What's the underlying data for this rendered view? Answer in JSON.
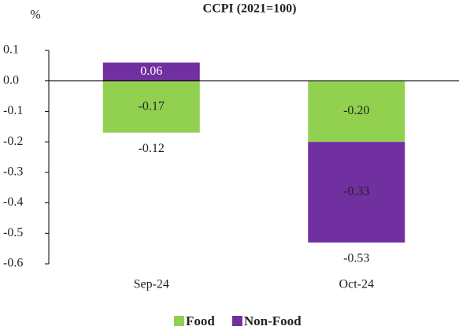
{
  "chart_data": {
    "type": "stacked_bar",
    "title": "CCPI (2021=100)",
    "y_label": "%",
    "categories": [
      "Sep-24",
      "Oct-24"
    ],
    "series": [
      {
        "name": "Food",
        "color": "#92d050",
        "values": [
          -0.17,
          -0.2
        ],
        "value_labels": [
          "-0.17",
          "-0.20"
        ]
      },
      {
        "name": "Non-Food",
        "color": "#7030a0",
        "values": [
          0.06,
          -0.33
        ],
        "value_labels": [
          "0.06",
          "-0.33"
        ]
      }
    ],
    "totals": [
      -0.12,
      -0.53
    ],
    "ylim": [
      -0.6,
      0.1
    ],
    "yticks": [
      0.1,
      {
        "value": 0,
        "label": "0.0"
      },
      -0.1,
      -0.2,
      -0.3,
      -0.4,
      -0.5,
      -0.6
    ],
    "legend": "bottom"
  }
}
